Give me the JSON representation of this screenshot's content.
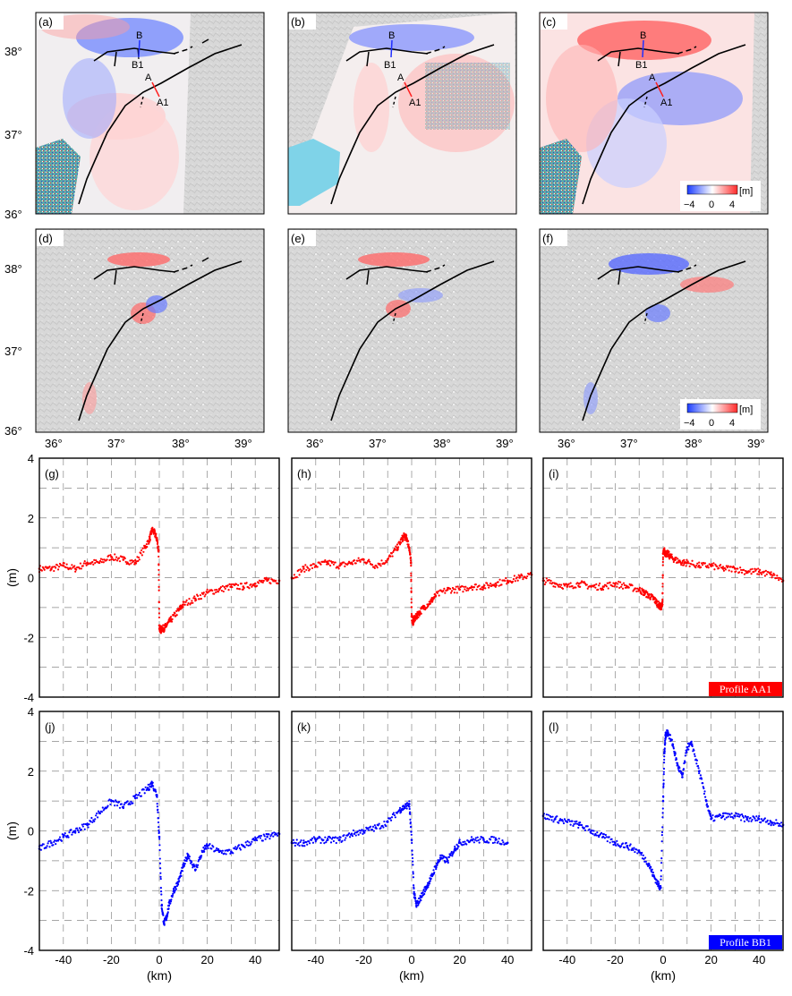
{
  "maps": {
    "panels": [
      {
        "label": "(a)",
        "kind": "insar"
      },
      {
        "label": "(b)",
        "kind": "insar"
      },
      {
        "label": "(c)",
        "kind": "insar"
      },
      {
        "label": "(d)",
        "kind": "model"
      },
      {
        "label": "(e)",
        "kind": "model"
      },
      {
        "label": "(f)",
        "kind": "model"
      }
    ],
    "lat_ticks": [
      "36°",
      "37°",
      "38°"
    ],
    "lon_ticks": [
      "36°",
      "37°",
      "38°",
      "39°"
    ],
    "profile_labels": {
      "a": "A",
      "a1": "A1",
      "b": "B",
      "b1": "B1"
    },
    "colorbar": {
      "unit": "[m]",
      "ticks": [
        "−4",
        "0",
        "4"
      ],
      "neg_color": "#1a3cff",
      "pos_color": "#ff2a2a"
    }
  },
  "chart_data": [
    {
      "type": "scatter",
      "title": "Profile AA1",
      "xlabel": "(km)",
      "ylabel": "(m)",
      "xlim": [
        -50,
        50
      ],
      "ylim": [
        -4,
        4
      ],
      "xticks": [
        -40,
        -20,
        0,
        20,
        40
      ],
      "yticks": [
        -4,
        -2,
        0,
        2,
        4
      ],
      "color": "#ff0000",
      "panels": [
        {
          "label": "(g)",
          "series": [
            {
              "name": "profile",
              "x": [
                -50,
                -45,
                -40,
                -35,
                -30,
                -25,
                -20,
                -15,
                -10,
                -6,
                -4,
                -3,
                -2,
                -1,
                -0.3,
                0,
                0.5,
                1,
                2,
                3,
                5,
                8,
                10,
                15,
                20,
                25,
                30,
                35,
                40,
                45,
                50
              ],
              "y": [
                0.3,
                0.3,
                0.4,
                0.3,
                0.5,
                0.5,
                0.7,
                0.6,
                0.5,
                1.0,
                1.3,
                1.6,
                1.5,
                1.3,
                0.9,
                -1.6,
                -1.8,
                -1.7,
                -1.7,
                -1.6,
                -1.4,
                -1.1,
                -0.9,
                -0.7,
                -0.5,
                -0.4,
                -0.3,
                -0.3,
                -0.2,
                -0.1,
                -0.1
              ]
            }
          ]
        },
        {
          "label": "(h)",
          "series": [
            {
              "name": "profile",
              "x": [
                -50,
                -45,
                -40,
                -35,
                -30,
                -25,
                -20,
                -15,
                -10,
                -6,
                -4,
                -3,
                -2,
                -1,
                -0.3,
                0,
                0.5,
                1,
                2,
                3,
                5,
                8,
                10,
                15,
                20,
                25,
                30,
                35,
                40,
                45,
                50
              ],
              "y": [
                0.0,
                0.3,
                0.4,
                0.5,
                0.4,
                0.5,
                0.6,
                0.4,
                0.6,
                1.0,
                1.3,
                1.4,
                1.3,
                1.0,
                0.5,
                -1.3,
                -1.5,
                -1.4,
                -1.3,
                -1.2,
                -1.0,
                -0.8,
                -0.6,
                -0.4,
                -0.4,
                -0.3,
                -0.3,
                -0.2,
                -0.1,
                0.0,
                0.1
              ]
            }
          ]
        },
        {
          "label": "(i)",
          "series": [
            {
              "name": "profile",
              "x": [
                -50,
                -45,
                -40,
                -35,
                -30,
                -25,
                -20,
                -15,
                -10,
                -8,
                -6,
                -4,
                -3,
                -2,
                -1,
                -0.3,
                0,
                0.5,
                1,
                2,
                3,
                5,
                8,
                10,
                15,
                20,
                25,
                30,
                35,
                40,
                45,
                50
              ],
              "y": [
                -0.1,
                -0.2,
                -0.3,
                -0.2,
                -0.3,
                -0.3,
                -0.2,
                -0.3,
                -0.4,
                -0.5,
                -0.6,
                -0.7,
                -0.8,
                -0.9,
                -1.0,
                -0.9,
                0.8,
                0.9,
                0.8,
                0.8,
                0.7,
                0.6,
                0.5,
                0.5,
                0.4,
                0.4,
                0.3,
                0.3,
                0.2,
                0.2,
                0.1,
                -0.1
              ]
            }
          ]
        }
      ]
    },
    {
      "type": "scatter",
      "title": "Profile BB1",
      "xlabel": "(km)",
      "ylabel": "(m)",
      "xlim": [
        -50,
        50
      ],
      "ylim": [
        -4,
        4
      ],
      "xticks": [
        -40,
        -20,
        0,
        20,
        40
      ],
      "yticks": [
        -4,
        -2,
        0,
        2,
        4
      ],
      "color": "#0000ff",
      "panels": [
        {
          "label": "(j)",
          "series": [
            {
              "name": "profile",
              "x": [
                -50,
                -45,
                -40,
                -35,
                -30,
                -25,
                -20,
                -15,
                -10,
                -5,
                -3,
                -1,
                0,
                1,
                2,
                3,
                4,
                6,
                8,
                10,
                12,
                15,
                18,
                20,
                25,
                30,
                35,
                40,
                45,
                50
              ],
              "y": [
                -0.6,
                -0.4,
                -0.2,
                0.0,
                0.2,
                0.6,
                1.0,
                0.8,
                1.1,
                1.4,
                1.6,
                1.2,
                -0.2,
                -2.5,
                -3.1,
                -2.9,
                -2.5,
                -2.0,
                -1.7,
                -1.2,
                -0.8,
                -1.3,
                -0.7,
                -0.5,
                -0.7,
                -0.7,
                -0.5,
                -0.3,
                -0.2,
                -0.1
              ]
            }
          ]
        },
        {
          "label": "(k)",
          "series": [
            {
              "name": "profile",
              "x": [
                -50,
                -45,
                -40,
                -35,
                -30,
                -25,
                -20,
                -15,
                -10,
                -5,
                -3,
                -1,
                0,
                1,
                2,
                4,
                6,
                8,
                10,
                12,
                15,
                18,
                20,
                25,
                30,
                35,
                40
              ],
              "y": [
                -0.4,
                -0.4,
                -0.3,
                -0.3,
                -0.3,
                -0.1,
                0.0,
                0.1,
                0.3,
                0.7,
                0.8,
                0.9,
                -0.3,
                -2.1,
                -2.5,
                -2.2,
                -1.9,
                -1.6,
                -1.2,
                -0.9,
                -1.0,
                -0.6,
                -0.4,
                -0.3,
                -0.3,
                -0.3,
                -0.4
              ]
            }
          ]
        },
        {
          "label": "(l)",
          "series": [
            {
              "name": "profile",
              "x": [
                -50,
                -45,
                -40,
                -35,
                -30,
                -25,
                -20,
                -15,
                -10,
                -6,
                -4,
                -2,
                -1,
                0,
                0.5,
                1,
                2,
                4,
                6,
                8,
                10,
                12,
                15,
                18,
                20,
                25,
                30,
                35,
                40,
                45,
                50
              ],
              "y": [
                0.5,
                0.4,
                0.3,
                0.2,
                0.0,
                -0.2,
                -0.4,
                -0.5,
                -0.7,
                -1.1,
                -1.5,
                -1.8,
                -1.9,
                1.0,
                2.6,
                3.2,
                3.3,
                2.9,
                2.2,
                1.8,
                2.8,
                2.9,
                2.0,
                1.0,
                0.4,
                0.5,
                0.5,
                0.4,
                0.4,
                0.3,
                0.2
              ]
            }
          ]
        }
      ]
    }
  ]
}
